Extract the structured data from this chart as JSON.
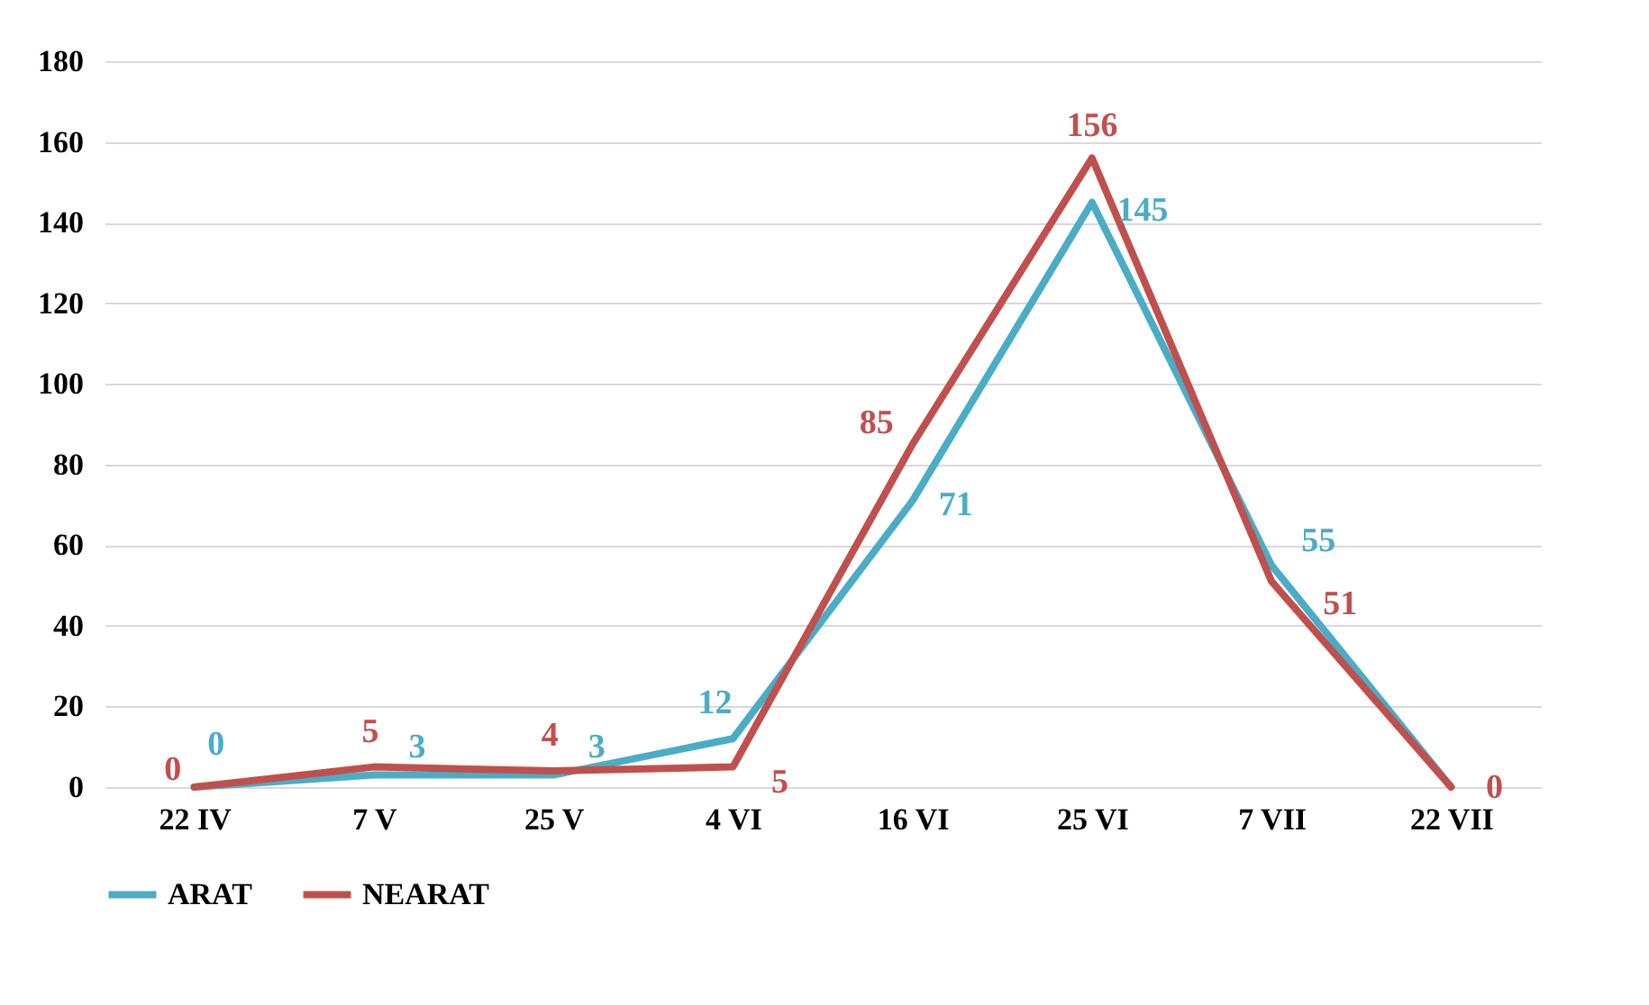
{
  "chart_data": {
    "type": "line",
    "categories": [
      "22 IV",
      "7 V",
      "25 V",
      "4 VI",
      "16 VI",
      "25 VI",
      "7 VII",
      "22 VII"
    ],
    "series": [
      {
        "name": "ARAT",
        "color": "#4bacc6",
        "values": [
          0,
          3,
          3,
          12,
          71,
          145,
          55,
          0
        ],
        "value_labels": [
          "0",
          "3",
          "3",
          "12",
          "71",
          "145",
          "55",
          null
        ]
      },
      {
        "name": "NEARAT",
        "color": "#c0504d",
        "values": [
          0,
          5,
          4,
          5,
          85,
          156,
          51,
          0
        ],
        "value_labels": [
          "0",
          "5",
          "4",
          "5",
          "85",
          "156",
          "51",
          "0"
        ]
      }
    ],
    "ylim": [
      0,
      180
    ],
    "yticks": [
      0,
      20,
      40,
      60,
      80,
      100,
      120,
      140,
      160,
      180
    ],
    "grid": "y",
    "legend": "bottom"
  }
}
